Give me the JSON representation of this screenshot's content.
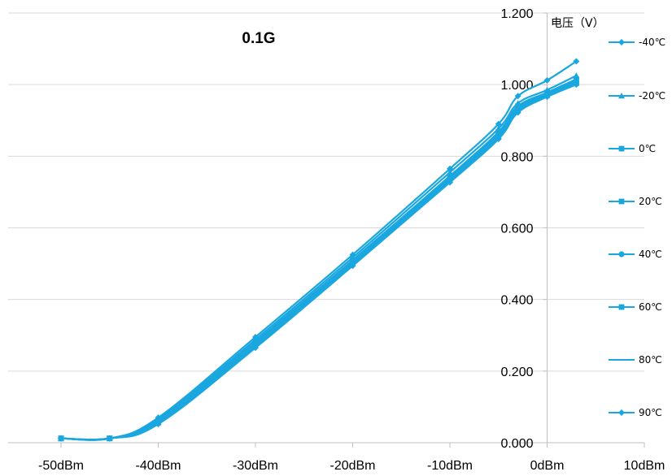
{
  "chart_data": {
    "type": "line",
    "title": "0.1G",
    "ylabel": "电压（V）",
    "xlabel": "",
    "x_tick_labels": [
      "-50dBm",
      "-40dBm",
      "-30dBm",
      "-20dBm",
      "-10dBm",
      "0dBm",
      "10dBm"
    ],
    "x_ticks": [
      -50,
      -40,
      -30,
      -20,
      -10,
      0,
      10
    ],
    "xlim": [
      -60,
      10
    ],
    "y_tick_labels": [
      "0.000",
      "0.200",
      "0.400",
      "0.600",
      "0.800",
      "1.000",
      "1.200"
    ],
    "y_ticks": [
      0,
      0.2,
      0.4,
      0.6,
      0.8,
      1.0,
      1.2
    ],
    "ylim": [
      0,
      1.2
    ],
    "grid": "horizontal",
    "legend_position": "right",
    "x": [
      -50,
      -45,
      -40,
      -30,
      -20,
      -10,
      -5,
      -3,
      0,
      3
    ],
    "series": [
      {
        "name": "-40℃",
        "marker": "diamond",
        "color": "#1aa7e0",
        "values": [
          0.012,
          0.012,
          0.07,
          0.295,
          0.525,
          0.765,
          0.89,
          0.968,
          1.012,
          1.065
        ]
      },
      {
        "name": "-20℃",
        "marker": "triangle",
        "color": "#1aa7e0",
        "values": [
          0.012,
          0.012,
          0.066,
          0.288,
          0.517,
          0.755,
          0.877,
          0.948,
          0.985,
          1.025
        ]
      },
      {
        "name": "0℃",
        "marker": "square",
        "color": "#1aa7e0",
        "values": [
          0.012,
          0.012,
          0.062,
          0.282,
          0.51,
          0.745,
          0.868,
          0.94,
          0.978,
          1.015
        ]
      },
      {
        "name": "20℃",
        "marker": "square",
        "color": "#1aa7e0",
        "values": [
          0.012,
          0.012,
          0.06,
          0.278,
          0.505,
          0.74,
          0.862,
          0.935,
          0.975,
          1.01
        ]
      },
      {
        "name": "40℃",
        "marker": "circle",
        "color": "#1aa7e0",
        "values": [
          0.012,
          0.012,
          0.058,
          0.275,
          0.502,
          0.736,
          0.858,
          0.931,
          0.972,
          1.006
        ]
      },
      {
        "name": "60℃",
        "marker": "square",
        "color": "#1aa7e0",
        "values": [
          0.012,
          0.012,
          0.056,
          0.272,
          0.5,
          0.733,
          0.855,
          0.928,
          0.97,
          1.004
        ]
      },
      {
        "name": "80℃",
        "marker": "none",
        "color": "#1aa7e0",
        "values": [
          0.012,
          0.012,
          0.054,
          0.268,
          0.497,
          0.73,
          0.851,
          0.925,
          0.968,
          1.002
        ]
      },
      {
        "name": "90℃",
        "marker": "diamond",
        "color": "#1aa7e0",
        "values": [
          0.012,
          0.012,
          0.052,
          0.265,
          0.494,
          0.727,
          0.848,
          0.922,
          0.966,
          1.0
        ]
      }
    ]
  }
}
